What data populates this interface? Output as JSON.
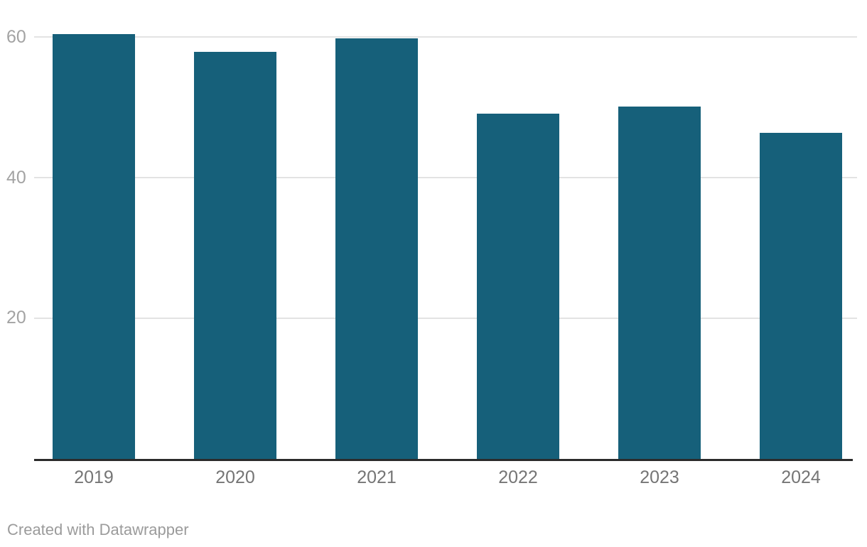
{
  "chart_data": {
    "type": "bar",
    "categories": [
      "2019",
      "2020",
      "2021",
      "2022",
      "2023",
      "2024"
    ],
    "values": [
      60.5,
      58.0,
      59.9,
      49.2,
      50.2,
      46.4
    ],
    "title": "",
    "xlabel": "",
    "ylabel": "",
    "ylim": [
      0,
      62
    ],
    "yticks": [
      20,
      40,
      60
    ],
    "grid": true,
    "legend": "none",
    "bar_color": "#16607a"
  },
  "colors": {
    "bar": "#16607a",
    "gridline": "#e3e3e3",
    "axis_line": "#2b2b2b",
    "y_tick_label": "#a3a3a3",
    "x_tick_label": "#757575",
    "footer_text": "#9b9b9b",
    "background": "#ffffff"
  },
  "footer": {
    "attribution": "Created with Datawrapper"
  }
}
